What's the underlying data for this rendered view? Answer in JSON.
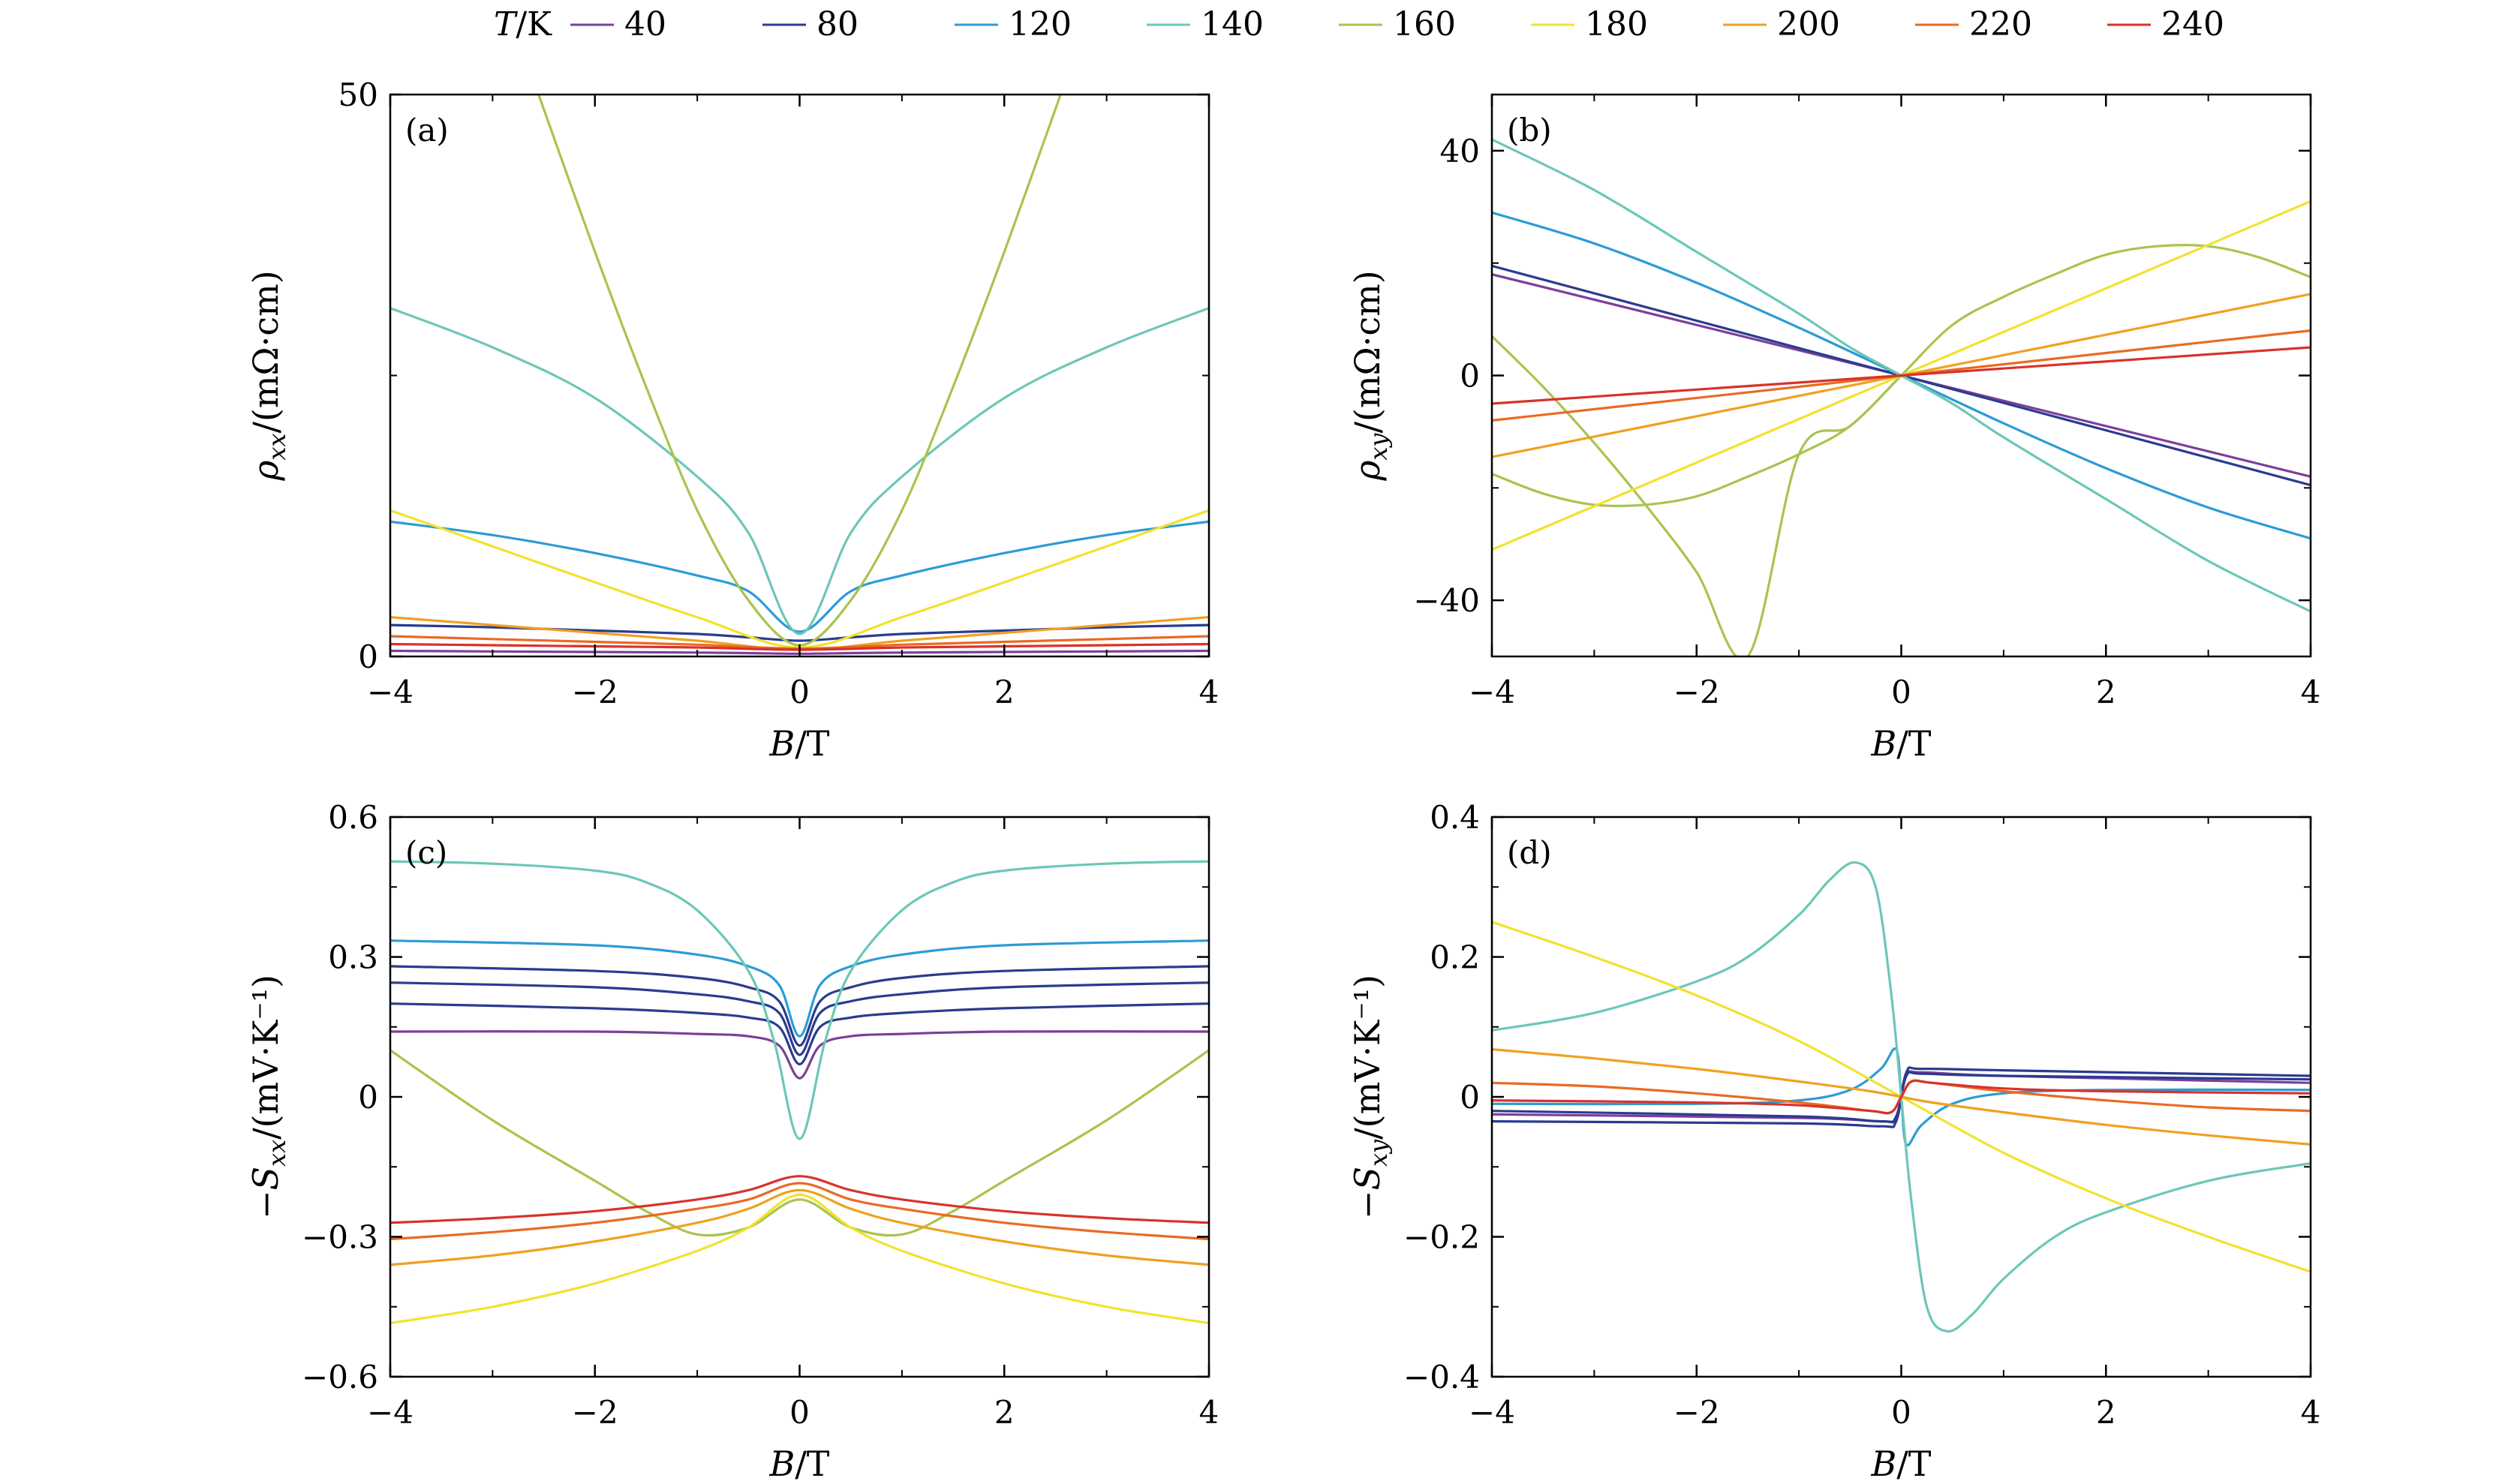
{
  "legend": {
    "title_var": "T",
    "title_unit": "/K",
    "entries": [
      {
        "label": "40",
        "color": "#7b3f9a"
      },
      {
        "label": "80",
        "color": "#2a3b8f"
      },
      {
        "label": "120",
        "color": "#2c9bd6"
      },
      {
        "label": "140",
        "color": "#6cc7b8"
      },
      {
        "label": "160",
        "color": "#a8c44e"
      },
      {
        "label": "180",
        "color": "#f2e22e"
      },
      {
        "label": "200",
        "color": "#f0a020"
      },
      {
        "label": "220",
        "color": "#ea6a22"
      },
      {
        "label": "240",
        "color": "#d9322a"
      }
    ]
  },
  "chart_data": [
    {
      "type": "line",
      "panel": "(a)",
      "xlabel": "B/T",
      "ylabel": "ρxx/(mΩ·cm)",
      "xlim": [
        -4,
        4
      ],
      "ylim": [
        0,
        50
      ],
      "xticks": [
        "−4",
        "−2",
        "0",
        "2",
        "4"
      ],
      "yticks": [
        "0",
        "50"
      ],
      "ytick_values": [
        0,
        50
      ],
      "y_minor": [
        25
      ],
      "series": [
        {
          "name": "40",
          "x": [
            -4,
            -3,
            -2,
            -1,
            -0.5,
            0,
            0.5,
            1,
            2,
            3,
            4
          ],
          "y": [
            0.5,
            0.45,
            0.4,
            0.35,
            0.3,
            0.25,
            0.3,
            0.35,
            0.4,
            0.45,
            0.5
          ]
        },
        {
          "name": "80",
          "x": [
            -4,
            -3,
            -2,
            -1,
            -0.5,
            0,
            0.5,
            1,
            2,
            3,
            4
          ],
          "y": [
            2.8,
            2.6,
            2.3,
            2,
            1.7,
            1.4,
            1.7,
            2,
            2.3,
            2.6,
            2.8
          ]
        },
        {
          "name": "120",
          "x": [
            -4,
            -3,
            -2,
            -1,
            -0.5,
            0,
            0.5,
            1,
            2,
            3,
            4
          ],
          "y": [
            12,
            10.8,
            9.2,
            7.2,
            5.8,
            2.2,
            5.8,
            7.2,
            9.2,
            10.8,
            12
          ]
        },
        {
          "name": "140",
          "x": [
            -4,
            -3,
            -2,
            -1,
            -0.5,
            0,
            0.5,
            1,
            2,
            3,
            4
          ],
          "y": [
            31,
            27.5,
            23,
            16,
            11,
            2,
            11,
            16,
            23,
            27.5,
            31
          ]
        },
        {
          "name": "160",
          "x": [
            -2.55,
            -2,
            -1.5,
            -1,
            -0.5,
            0,
            0.5,
            1,
            1.5,
            2,
            2.55
          ],
          "y": [
            50,
            36,
            24,
            13,
            5,
            1,
            5,
            13,
            24,
            36,
            50
          ]
        },
        {
          "name": "180",
          "x": [
            -4,
            -3,
            -2,
            -1,
            0,
            1,
            2,
            3,
            4
          ],
          "y": [
            13,
            9.8,
            6.6,
            3.5,
            0.8,
            3.5,
            6.6,
            9.8,
            13
          ]
        },
        {
          "name": "200",
          "x": [
            -4,
            -3,
            -2,
            -1,
            0,
            1,
            2,
            3,
            4
          ],
          "y": [
            3.5,
            2.8,
            2.1,
            1.4,
            0.6,
            1.4,
            2.1,
            2.8,
            3.5
          ]
        },
        {
          "name": "220",
          "x": [
            -4,
            -3,
            -2,
            -1,
            0,
            1,
            2,
            3,
            4
          ],
          "y": [
            1.8,
            1.55,
            1.3,
            1.05,
            0.7,
            1.05,
            1.3,
            1.55,
            1.8
          ]
        },
        {
          "name": "240",
          "x": [
            -4,
            -3,
            -2,
            -1,
            0,
            1,
            2,
            3,
            4
          ],
          "y": [
            1.1,
            1,
            0.9,
            0.8,
            0.6,
            0.8,
            0.9,
            1,
            1.1
          ]
        }
      ]
    },
    {
      "type": "line",
      "panel": "(b)",
      "xlabel": "B/T",
      "ylabel": "ρxy/(mΩ·cm)",
      "xlim": [
        -4,
        4
      ],
      "ylim": [
        -50,
        50
      ],
      "xticks": [
        "−4",
        "−2",
        "0",
        "2",
        "4"
      ],
      "yticks": [
        "−40",
        "0",
        "40"
      ],
      "ytick_values": [
        -40,
        0,
        40
      ],
      "y_minor": [
        -20,
        20
      ],
      "series": [
        {
          "name": "40",
          "x": [
            -4,
            4
          ],
          "y": [
            18,
            -18
          ]
        },
        {
          "name": "80",
          "x": [
            -4,
            4
          ],
          "y": [
            19.5,
            -19.5
          ]
        },
        {
          "name": "120",
          "x": [
            -4,
            -3,
            -2,
            -1,
            0,
            1,
            2,
            3,
            4
          ],
          "y": [
            29,
            23.5,
            16.5,
            8.5,
            0,
            -8.5,
            -16.5,
            -23.5,
            -29
          ]
        },
        {
          "name": "140",
          "x": [
            -4,
            -3,
            -2,
            -1,
            -0.5,
            0,
            0.5,
            1,
            2,
            3,
            4
          ],
          "y": [
            42,
            33,
            22,
            11,
            5,
            0,
            -5,
            -11,
            -22,
            -33,
            -42
          ]
        },
        {
          "name": "160",
          "x": [
            -4,
            -3.5,
            -3,
            -2.5,
            -2,
            -1.5,
            -1,
            -0.5,
            0,
            0.5,
            1,
            1.5,
            2,
            2.5,
            3,
            3.5,
            4
          ],
          "y": [
            7,
            -2,
            -12,
            -23,
            -35,
            -50,
            -14,
            -9,
            0,
            9,
            14,
            18,
            21.5,
            23,
            23,
            21,
            17.5
          ]
        },
        {
          "name": "160b",
          "x": [
            -4,
            -3.5,
            -3,
            -2.5,
            -2,
            -1.5,
            -1,
            -0.5,
            0
          ],
          "y": [
            -17.5,
            -21,
            -23,
            -23,
            -21.5,
            -18,
            -14,
            -9,
            0
          ]
        },
        {
          "name": "180",
          "x": [
            -4,
            4
          ],
          "y": [
            -31,
            31
          ]
        },
        {
          "name": "200",
          "x": [
            -4,
            4
          ],
          "y": [
            -14.5,
            14.5
          ]
        },
        {
          "name": "220",
          "x": [
            -4,
            4
          ],
          "y": [
            -8,
            8
          ]
        },
        {
          "name": "240",
          "x": [
            -4,
            4
          ],
          "y": [
            -5,
            5
          ]
        }
      ]
    },
    {
      "type": "line",
      "panel": "(c)",
      "xlabel": "B/T",
      "ylabel": "−Sxx/(mV·K⁻¹)",
      "xlim": [
        -4,
        4
      ],
      "ylim": [
        -0.6,
        0.6
      ],
      "xticks": [
        "−4",
        "−2",
        "0",
        "2",
        "4"
      ],
      "yticks": [
        "−0.6",
        "−0.3",
        "0",
        "0.3",
        "0.6"
      ],
      "ytick_values": [
        -0.6,
        -0.3,
        0,
        0.3,
        0.6
      ],
      "y_minor": [
        -0.45,
        -0.15,
        0.15,
        0.45
      ],
      "series": [
        {
          "name": "40",
          "x": [
            -4,
            -2,
            -1,
            -0.5,
            -0.2,
            0,
            0.2,
            0.5,
            1,
            2,
            4
          ],
          "y": [
            0.14,
            0.14,
            0.135,
            0.13,
            0.11,
            0.04,
            0.11,
            0.13,
            0.135,
            0.14,
            0.14
          ]
        },
        {
          "name": "80",
          "x": [
            -4,
            -2,
            -1,
            -0.5,
            -0.2,
            0,
            0.2,
            0.5,
            1,
            2,
            4
          ],
          "y": [
            0.2,
            0.19,
            0.18,
            0.17,
            0.15,
            0.07,
            0.15,
            0.17,
            0.18,
            0.19,
            0.2
          ]
        },
        {
          "name": "80b",
          "x": [
            -4,
            -2,
            -1,
            -0.5,
            -0.2,
            0,
            0.2,
            0.5,
            1,
            2,
            4
          ],
          "y": [
            0.245,
            0.235,
            0.22,
            0.205,
            0.18,
            0.09,
            0.18,
            0.205,
            0.22,
            0.235,
            0.245
          ]
        },
        {
          "name": "80c",
          "x": [
            -4,
            -2,
            -1,
            -0.5,
            -0.2,
            0,
            0.2,
            0.5,
            1,
            2,
            4
          ],
          "y": [
            0.28,
            0.27,
            0.255,
            0.235,
            0.205,
            0.11,
            0.205,
            0.235,
            0.255,
            0.27,
            0.28
          ]
        },
        {
          "name": "120",
          "x": [
            -4,
            -2,
            -1,
            -0.5,
            -0.2,
            0,
            0.2,
            0.5,
            1,
            2,
            4
          ],
          "y": [
            0.335,
            0.325,
            0.305,
            0.28,
            0.24,
            0.13,
            0.24,
            0.28,
            0.305,
            0.325,
            0.335
          ]
        },
        {
          "name": "140",
          "x": [
            -4,
            -3,
            -2,
            -1.5,
            -1,
            -0.5,
            -0.25,
            0,
            0.25,
            0.5,
            1,
            1.5,
            2,
            3,
            4
          ],
          "y": [
            0.505,
            0.5,
            0.485,
            0.46,
            0.4,
            0.27,
            0.12,
            -0.09,
            0.12,
            0.27,
            0.4,
            0.46,
            0.485,
            0.5,
            0.505
          ]
        },
        {
          "name": "160",
          "x": [
            -4,
            -3,
            -2,
            -1.5,
            -1,
            -0.5,
            0,
            0.5,
            1,
            1.5,
            2,
            3,
            4
          ],
          "y": [
            0.1,
            -0.05,
            -0.18,
            -0.245,
            -0.295,
            -0.28,
            -0.22,
            -0.28,
            -0.295,
            -0.245,
            -0.18,
            -0.05,
            0.1
          ]
        },
        {
          "name": "180",
          "x": [
            -4,
            -3,
            -2,
            -1,
            -0.5,
            0,
            0.5,
            1,
            2,
            3,
            4
          ],
          "y": [
            -0.485,
            -0.45,
            -0.4,
            -0.33,
            -0.28,
            -0.21,
            -0.28,
            -0.33,
            -0.4,
            -0.45,
            -0.485
          ]
        },
        {
          "name": "200",
          "x": [
            -4,
            -3,
            -2,
            -1,
            -0.5,
            0,
            0.5,
            1,
            2,
            3,
            4
          ],
          "y": [
            -0.36,
            -0.34,
            -0.31,
            -0.27,
            -0.24,
            -0.2,
            -0.24,
            -0.27,
            -0.31,
            -0.34,
            -0.36
          ]
        },
        {
          "name": "220",
          "x": [
            -4,
            -3,
            -2,
            -1,
            -0.5,
            0,
            0.5,
            1,
            2,
            3,
            4
          ],
          "y": [
            -0.305,
            -0.29,
            -0.27,
            -0.24,
            -0.22,
            -0.185,
            -0.22,
            -0.24,
            -0.27,
            -0.29,
            -0.305
          ]
        },
        {
          "name": "240",
          "x": [
            -4,
            -3,
            -2,
            -1,
            -0.5,
            0,
            0.5,
            1,
            2,
            3,
            4
          ],
          "y": [
            -0.27,
            -0.26,
            -0.245,
            -0.22,
            -0.2,
            -0.17,
            -0.2,
            -0.22,
            -0.245,
            -0.26,
            -0.27
          ]
        }
      ]
    },
    {
      "type": "line",
      "panel": "(d)",
      "xlabel": "B/T",
      "ylabel": "−Sxy/(mV·K⁻¹)",
      "xlim": [
        -4,
        4
      ],
      "ylim": [
        -0.4,
        0.4
      ],
      "xticks": [
        "−4",
        "−2",
        "0",
        "2",
        "4"
      ],
      "yticks": [
        "−0.4",
        "−0.2",
        "0",
        "0.2",
        "0.4"
      ],
      "ytick_values": [
        -0.4,
        -0.2,
        0,
        0.2,
        0.4
      ],
      "y_minor": [
        -0.3,
        -0.1,
        0.1,
        0.3
      ],
      "series": [
        {
          "name": "40",
          "x": [
            -4,
            -1,
            -0.2,
            -0.05,
            0.05,
            0.2,
            1,
            4
          ],
          "y": [
            -0.025,
            -0.03,
            -0.035,
            -0.03,
            0.03,
            0.035,
            0.03,
            0.02
          ]
        },
        {
          "name": "80",
          "x": [
            -4,
            -1,
            -0.2,
            -0.05,
            0.05,
            0.2,
            1,
            4
          ],
          "y": [
            -0.035,
            -0.038,
            -0.042,
            -0.035,
            0.035,
            0.04,
            0.038,
            0.03
          ]
        },
        {
          "name": "80b",
          "x": [
            -4,
            -1,
            -0.2,
            -0.05,
            0.05,
            0.2,
            1,
            4
          ],
          "y": [
            -0.02,
            -0.028,
            -0.035,
            -0.028,
            0.03,
            0.033,
            0.03,
            0.025
          ]
        },
        {
          "name": "120",
          "x": [
            -4,
            -2,
            -1,
            -0.5,
            -0.2,
            -0.05,
            0,
            0.05,
            0.2,
            0.5,
            1,
            2,
            4
          ],
          "y": [
            -0.01,
            -0.01,
            -0.005,
            0.01,
            0.04,
            0.068,
            0,
            -0.068,
            -0.04,
            -0.01,
            0.005,
            0.01,
            0.01
          ]
        },
        {
          "name": "140",
          "x": [
            -4,
            -3,
            -2,
            -1.5,
            -1,
            -0.7,
            -0.45,
            -0.25,
            -0.1,
            0,
            0.1,
            0.25,
            0.45,
            0.7,
            1,
            1.5,
            2,
            3,
            4
          ],
          "y": [
            0.095,
            0.12,
            0.165,
            0.2,
            0.26,
            0.31,
            0.335,
            0.3,
            0.15,
            0,
            -0.15,
            -0.3,
            -0.335,
            -0.31,
            -0.26,
            -0.2,
            -0.165,
            -0.12,
            -0.095
          ]
        },
        {
          "name": "180",
          "x": [
            -4,
            -3,
            -2,
            -1,
            0,
            1,
            2,
            3,
            4
          ],
          "y": [
            0.25,
            0.2,
            0.145,
            0.08,
            0,
            -0.08,
            -0.145,
            -0.2,
            -0.25
          ]
        },
        {
          "name": "200",
          "x": [
            -4,
            -3,
            -2,
            -1,
            -0.3,
            0,
            0.3,
            1,
            2,
            3,
            4
          ],
          "y": [
            0.068,
            0.055,
            0.04,
            0.022,
            0.008,
            0,
            -0.008,
            -0.022,
            -0.04,
            -0.055,
            -0.068
          ]
        },
        {
          "name": "220",
          "x": [
            -4,
            -3,
            -2,
            -1,
            -0.3,
            -0.1,
            0,
            0.1,
            0.3,
            1,
            2,
            3,
            4
          ],
          "y": [
            0.02,
            0.015,
            0.005,
            -0.008,
            -0.02,
            -0.022,
            0,
            0.022,
            0.02,
            0.008,
            -0.005,
            -0.015,
            -0.02
          ]
        },
        {
          "name": "240",
          "x": [
            -4,
            -2,
            -1,
            -0.3,
            -0.1,
            0,
            0.1,
            0.3,
            1,
            2,
            4
          ],
          "y": [
            -0.005,
            -0.008,
            -0.012,
            -0.02,
            -0.022,
            0,
            0.022,
            0.02,
            0.012,
            0.008,
            0.005
          ]
        }
      ]
    }
  ]
}
